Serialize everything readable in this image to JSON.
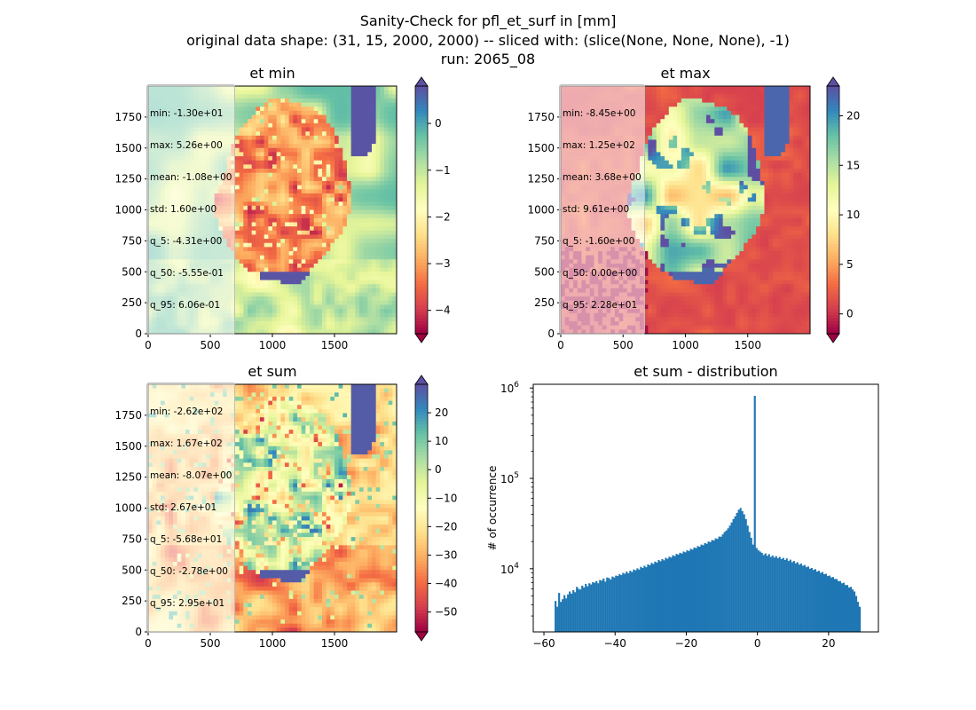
{
  "figure": {
    "title_lines": [
      "Sanity-Check for pfl_et_surf in [mm]",
      "original data shape: (31, 15, 2000, 2000) -- sliced with: (slice(None, None, None), -1)",
      "run: 2065_08"
    ]
  },
  "chart_data": [
    {
      "type": "heatmap",
      "title": "et min",
      "xticks": [
        0,
        500,
        1000,
        1500
      ],
      "yticks": [
        0,
        250,
        500,
        750,
        1000,
        1250,
        1500,
        1750
      ],
      "xlim": [
        0,
        2000
      ],
      "ylim": [
        0,
        2000
      ],
      "colormap": "Spectral",
      "colorbar": {
        "range": [
          -4.5,
          0.8
        ],
        "ticks": [
          0,
          -1,
          -2,
          -3,
          -4
        ],
        "extend": "both"
      },
      "stats": [
        "min: -1.30e+01",
        "max: 5.26e+00",
        "mean: -1.08e+00",
        "std: 1.60e+00",
        "q_5: -4.31e+00",
        "q_50: -5.55e-01",
        "q_95: 6.06e-01"
      ]
    },
    {
      "type": "heatmap",
      "title": "et max",
      "xticks": [
        0,
        500,
        1000,
        1500
      ],
      "yticks": [
        0,
        250,
        500,
        750,
        1000,
        1250,
        1500,
        1750
      ],
      "xlim": [
        0,
        2000
      ],
      "ylim": [
        0,
        2000
      ],
      "colormap": "Spectral",
      "colorbar": {
        "range": [
          -2,
          23
        ],
        "ticks": [
          0,
          5,
          10,
          15,
          20
        ],
        "extend": "both"
      },
      "stats": [
        "min: -8.45e+00",
        "max: 1.25e+02",
        "mean: 3.68e+00",
        "std: 9.61e+00",
        "q_5: -1.60e+00",
        "q_50: 0.00e+00",
        "q_95: 2.28e+01"
      ]
    },
    {
      "type": "heatmap",
      "title": "et sum",
      "xticks": [
        0,
        500,
        1000,
        1500
      ],
      "yticks": [
        0,
        250,
        500,
        750,
        1000,
        1250,
        1500,
        1750
      ],
      "xlim": [
        0,
        2000
      ],
      "ylim": [
        0,
        2000
      ],
      "colormap": "Spectral",
      "colorbar": {
        "range": [
          -57,
          30
        ],
        "ticks": [
          20,
          10,
          0,
          -10,
          -20,
          -30,
          -40,
          -50
        ],
        "extend": "both"
      },
      "stats": [
        "min: -2.62e+02",
        "max: 1.67e+02",
        "mean: -8.07e+00",
        "std: 2.67e+01",
        "q_5: -5.68e+01",
        "q_50: -2.78e+00",
        "q_95: 2.95e+01"
      ]
    },
    {
      "type": "bar",
      "title": "et sum - distribution",
      "ylabel": "# of occurrence",
      "yscale": "log",
      "xlim": [
        -63,
        34
      ],
      "ylim": [
        2000,
        1100000
      ],
      "xticks": [
        -60,
        -40,
        -20,
        0,
        20
      ],
      "yticks": [
        10000,
        100000,
        1000000
      ],
      "ytick_labels": [
        [
          "10",
          "4"
        ],
        [
          "10",
          "5"
        ],
        [
          "10",
          "6"
        ]
      ],
      "bar_color": "#1f77b4",
      "x": [
        -56.75,
        -56.25,
        -55.75,
        -55.25,
        -54.75,
        -54.25,
        -53.75,
        -53.25,
        -52.75,
        -52.25,
        -51.75,
        -51.25,
        -50.75,
        -50.25,
        -49.75,
        -49.25,
        -48.75,
        -48.25,
        -47.75,
        -47.25,
        -46.75,
        -46.25,
        -45.75,
        -45.25,
        -44.75,
        -44.25,
        -43.75,
        -43.25,
        -42.75,
        -42.25,
        -41.75,
        -41.25,
        -40.75,
        -40.25,
        -39.75,
        -39.25,
        -38.75,
        -38.25,
        -37.75,
        -37.25,
        -36.75,
        -36.25,
        -35.75,
        -35.25,
        -34.75,
        -34.25,
        -33.75,
        -33.25,
        -32.75,
        -32.25,
        -31.75,
        -31.25,
        -30.75,
        -30.25,
        -29.75,
        -29.25,
        -28.75,
        -28.25,
        -27.75,
        -27.25,
        -26.75,
        -26.25,
        -25.75,
        -25.25,
        -24.75,
        -24.25,
        -23.75,
        -23.25,
        -22.75,
        -22.25,
        -21.75,
        -21.25,
        -20.75,
        -20.25,
        -19.75,
        -19.25,
        -18.75,
        -18.25,
        -17.75,
        -17.25,
        -16.75,
        -16.25,
        -15.75,
        -15.25,
        -14.75,
        -14.25,
        -13.75,
        -13.25,
        -12.75,
        -12.25,
        -11.75,
        -11.25,
        -10.75,
        -10.25,
        -9.75,
        -9.25,
        -8.75,
        -8.25,
        -7.75,
        -7.25,
        -6.75,
        -6.25,
        -5.75,
        -5.25,
        -4.75,
        -4.25,
        -3.75,
        -3.25,
        -2.75,
        -2.25,
        -1.75,
        -1.25,
        -0.75,
        -0.25,
        0.25,
        0.75,
        1.25,
        1.75,
        2.25,
        2.75,
        3.25,
        3.75,
        4.25,
        4.75,
        5.25,
        5.75,
        6.25,
        6.75,
        7.25,
        7.75,
        8.25,
        8.75,
        9.25,
        9.75,
        10.25,
        10.75,
        11.25,
        11.75,
        12.25,
        12.75,
        13.25,
        13.75,
        14.25,
        14.75,
        15.25,
        15.75,
        16.25,
        16.75,
        17.25,
        17.75,
        18.25,
        18.75,
        19.25,
        19.75,
        20.25,
        20.75,
        21.25,
        21.75,
        22.25,
        22.75,
        23.25,
        23.75,
        24.25,
        24.75,
        25.25,
        25.75,
        26.25,
        26.75,
        27.25,
        27.75,
        28.25,
        28.75
      ],
      "values": [
        4400,
        3800,
        5400,
        4300,
        4600,
        5100,
        4700,
        5200,
        5600,
        5300,
        5800,
        5500,
        6300,
        6000,
        5900,
        6500,
        6200,
        6800,
        6400,
        6900,
        6700,
        7100,
        7000,
        7300,
        6900,
        7500,
        7400,
        7800,
        7200,
        8000,
        7900,
        7600,
        8200,
        8000,
        8400,
        8300,
        8700,
        8500,
        9000,
        8800,
        9300,
        8900,
        9500,
        9200,
        9800,
        9600,
        10100,
        9800,
        10500,
        10200,
        10800,
        10400,
        11200,
        10900,
        11600,
        11300,
        12000,
        11700,
        12500,
        12100,
        12800,
        12400,
        13200,
        12900,
        13600,
        13300,
        14100,
        13800,
        14600,
        14300,
        15000,
        14700,
        15500,
        15200,
        16000,
        15700,
        16600,
        16300,
        17200,
        16900,
        17800,
        17500,
        18500,
        18200,
        19200,
        18900,
        20000,
        19700,
        20800,
        20500,
        21700,
        21400,
        22700,
        22600,
        24000,
        25500,
        26500,
        28000,
        30000,
        32500,
        35500,
        38000,
        41500,
        45000,
        47000,
        43500,
        40000,
        35500,
        30000,
        25500,
        22000,
        18500,
        820000,
        17000,
        16000,
        15500,
        15000,
        14200,
        14800,
        13900,
        14500,
        13500,
        14000,
        13300,
        13800,
        13100,
        13500,
        12800,
        13200,
        12500,
        13000,
        12200,
        12600,
        11800,
        12200,
        11500,
        11800,
        11100,
        11400,
        10800,
        11000,
        10400,
        10600,
        10000,
        10200,
        9700,
        9900,
        9300,
        9500,
        9000,
        9200,
        8700,
        8800,
        8300,
        8400,
        8000,
        8100,
        7700,
        7700,
        7300,
        7300,
        6900,
        7000,
        6600,
        6600,
        6200,
        6300,
        5900,
        5600,
        5000,
        4300,
        3800
      ]
    }
  ]
}
